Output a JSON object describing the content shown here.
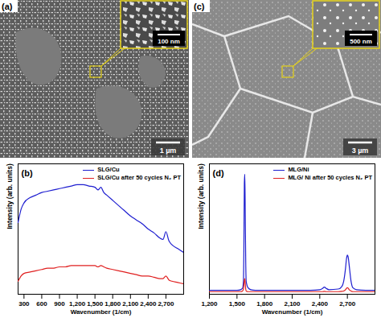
{
  "images": [
    {
      "label": "(a)",
      "scale_bar": "1 µm",
      "inset_scale_bar": "100 nm"
    },
    {
      "label": "(c)",
      "scale_bar": "3 µm",
      "inset_scale_bar": "500 nm"
    }
  ],
  "chart_data": [
    {
      "type": "line",
      "title": "(b)",
      "x_label": "Wavenumber (1/cm)",
      "y_label": "Intensity (arb. units)",
      "x": [
        200,
        250,
        300,
        400,
        500,
        600,
        700,
        800,
        900,
        1000,
        1100,
        1200,
        1300,
        1400,
        1500,
        1550,
        1600,
        1650,
        1700,
        1800,
        1900,
        2000,
        2100,
        2200,
        2300,
        2400,
        2500,
        2600,
        2650,
        2700,
        2750,
        2800,
        2900,
        3000
      ],
      "series": [
        {
          "name": "SLG/Cu",
          "color": "#1f1fd0",
          "values": [
            0.55,
            0.65,
            0.7,
            0.74,
            0.76,
            0.78,
            0.79,
            0.8,
            0.81,
            0.82,
            0.83,
            0.84,
            0.84,
            0.83,
            0.82,
            0.8,
            0.82,
            0.78,
            0.76,
            0.72,
            0.68,
            0.64,
            0.6,
            0.57,
            0.54,
            0.5,
            0.47,
            0.43,
            0.42,
            0.48,
            0.41,
            0.38,
            0.35,
            0.32
          ]
        },
        {
          "name": "SLG/Cu after 50 cycles N₂ PT",
          "color": "#e02020",
          "values": [
            0.1,
            0.14,
            0.16,
            0.17,
            0.18,
            0.19,
            0.2,
            0.2,
            0.21,
            0.21,
            0.22,
            0.22,
            0.22,
            0.22,
            0.22,
            0.21,
            0.22,
            0.21,
            0.2,
            0.19,
            0.18,
            0.17,
            0.16,
            0.15,
            0.14,
            0.14,
            0.13,
            0.12,
            0.12,
            0.14,
            0.11,
            0.1,
            0.09,
            0.08
          ]
        }
      ],
      "xlim": [
        200,
        3000
      ],
      "xticks": [
        300,
        600,
        900,
        1200,
        1500,
        1800,
        2100,
        2400,
        2700
      ],
      "ylim": [
        0,
        1
      ],
      "yticks": [],
      "tick_labels": "x",
      "legend": "top-right"
    },
    {
      "type": "line",
      "title": "(d)",
      "x_label": "Wavenumber (1/cm)",
      "y_label": "Intensity (arb. units)",
      "x": [
        1200,
        1300,
        1400,
        1500,
        1540,
        1560,
        1570,
        1575,
        1580,
        1585,
        1590,
        1595,
        1600,
        1620,
        1650,
        1700,
        1800,
        1900,
        2000,
        2100,
        2200,
        2300,
        2400,
        2430,
        2450,
        2470,
        2500,
        2600,
        2640,
        2660,
        2680,
        2690,
        2700,
        2710,
        2720,
        2740,
        2760,
        2800,
        2900,
        3000
      ],
      "series": [
        {
          "name": "MLG/Ni",
          "color": "#1f1fd0",
          "values": [
            0.03,
            0.03,
            0.03,
            0.03,
            0.035,
            0.045,
            0.1,
            0.35,
            0.85,
            0.92,
            0.6,
            0.25,
            0.1,
            0.05,
            0.035,
            0.03,
            0.03,
            0.03,
            0.03,
            0.03,
            0.03,
            0.03,
            0.035,
            0.045,
            0.055,
            0.045,
            0.035,
            0.04,
            0.06,
            0.1,
            0.2,
            0.27,
            0.3,
            0.28,
            0.22,
            0.1,
            0.05,
            0.035,
            0.03,
            0.03
          ]
        },
        {
          "name": "MLG/ Ni after 50 cycles N₂ PT",
          "color": "#e02020",
          "values": [
            0.02,
            0.02,
            0.02,
            0.02,
            0.02,
            0.025,
            0.04,
            0.07,
            0.11,
            0.12,
            0.08,
            0.04,
            0.025,
            0.02,
            0.02,
            0.02,
            0.02,
            0.02,
            0.02,
            0.02,
            0.02,
            0.02,
            0.02,
            0.02,
            0.022,
            0.02,
            0.02,
            0.02,
            0.022,
            0.025,
            0.035,
            0.045,
            0.05,
            0.045,
            0.035,
            0.025,
            0.02,
            0.02,
            0.02,
            0.02
          ]
        }
      ],
      "xlim": [
        1200,
        3000
      ],
      "xticks": [
        1200,
        1500,
        1800,
        2100,
        2400,
        2700
      ],
      "ylim": [
        0,
        1
      ],
      "yticks": [],
      "tick_labels": "x",
      "legend": "top-right"
    }
  ]
}
